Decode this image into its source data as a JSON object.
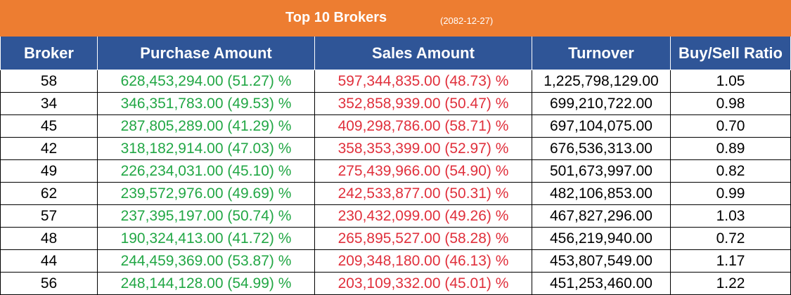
{
  "banner": {
    "title": "Top 10 Brokers",
    "date": "(2082-12-27)",
    "color": "#ed7d31"
  },
  "table": {
    "header_color": "#2f5597",
    "buy_color": "#22a745",
    "sell_color": "#e0303c",
    "columns": [
      "Broker",
      "Purchase Amount",
      "Sales Amount",
      "Turnover",
      "Buy/Sell Ratio"
    ],
    "rows": [
      [
        "58",
        "628,453,294.00 (51.27) %",
        "597,344,835.00 (48.73) %",
        "1,225,798,129.00",
        "1.05"
      ],
      [
        "34",
        "346,351,783.00 (49.53) %",
        "352,858,939.00 (50.47) %",
        "699,210,722.00",
        "0.98"
      ],
      [
        "45",
        "287,805,289.00 (41.29) %",
        "409,298,786.00 (58.71) %",
        "697,104,075.00",
        "0.70"
      ],
      [
        "42",
        "318,182,914.00 (47.03) %",
        "358,353,399.00 (52.97) %",
        "676,536,313.00",
        "0.89"
      ],
      [
        "49",
        "226,234,031.00 (45.10) %",
        "275,439,966.00 (54.90) %",
        "501,673,997.00",
        "0.82"
      ],
      [
        "62",
        "239,572,976.00 (49.69) %",
        "242,533,877.00 (50.31) %",
        "482,106,853.00",
        "0.99"
      ],
      [
        "57",
        "237,395,197.00 (50.74) %",
        "230,432,099.00 (49.26) %",
        "467,827,296.00",
        "1.03"
      ],
      [
        "48",
        "190,324,413.00 (41.72) %",
        "265,895,527.00 (58.28) %",
        "456,219,940.00",
        "0.72"
      ],
      [
        "44",
        "244,459,369.00 (53.87) %",
        "209,348,180.00 (46.13) %",
        "453,807,549.00",
        "1.17"
      ],
      [
        "56",
        "248,144,128.00 (54.99) %",
        "203,109,332.00 (45.01) %",
        "451,253,460.00",
        "1.22"
      ]
    ]
  }
}
